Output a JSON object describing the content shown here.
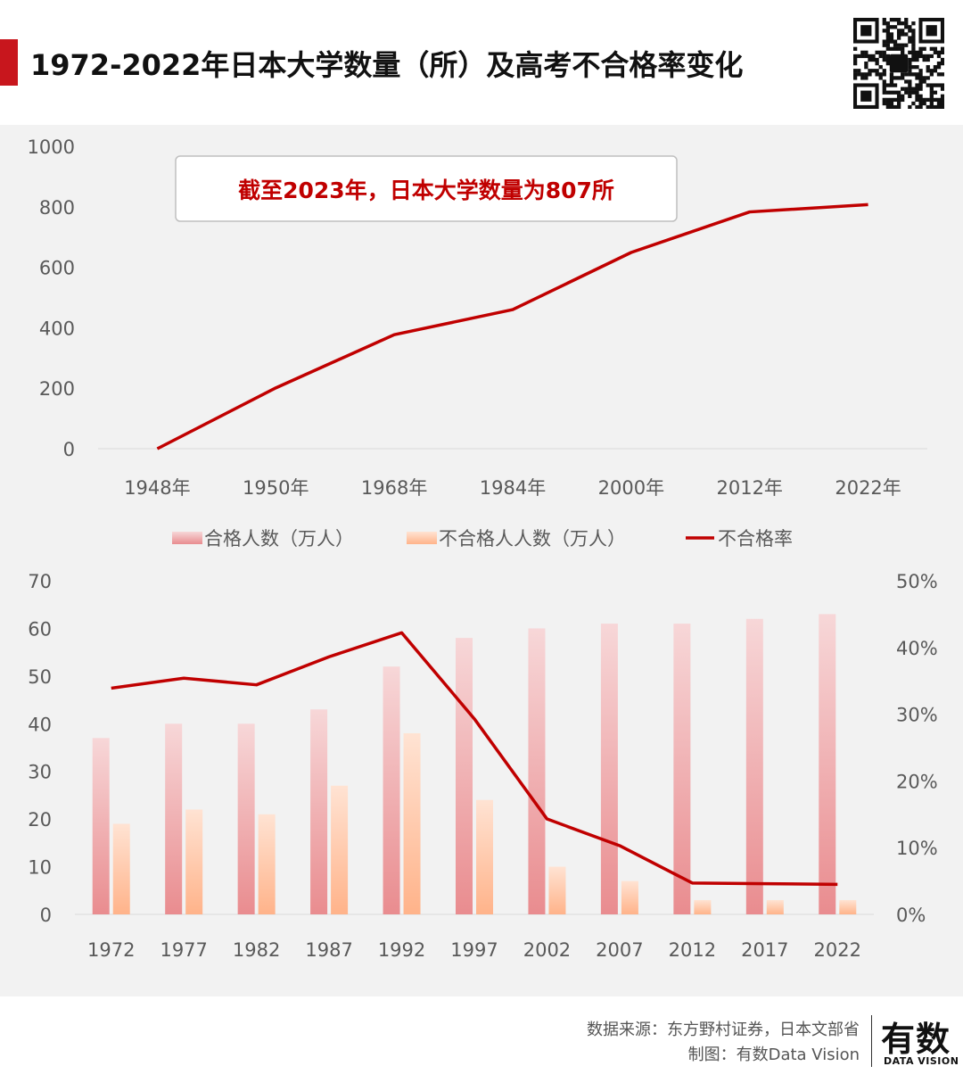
{
  "title": "1972-2022年日本大学数量（所）及高考不合格率变化",
  "chart_data": [
    {
      "type": "line",
      "title": "日本大学数量（所）",
      "annotation": "截至2023年，日本大学数量为807所",
      "categories": [
        "1948年",
        "1950年",
        "1968年",
        "1984年",
        "2000年",
        "2012年",
        "2022年"
      ],
      "series": [
        {
          "name": "日本大学数量",
          "values": [
            0,
            201,
            377,
            460,
            649,
            783,
            807
          ]
        }
      ],
      "ylim": [
        0,
        1000
      ],
      "yticks": [
        "0",
        "200",
        "400",
        "600",
        "800",
        "1000"
      ],
      "color": "#c00000"
    },
    {
      "type": "bar",
      "categories": [
        "1972",
        "1977",
        "1982",
        "1987",
        "1992",
        "1997",
        "2002",
        "2007",
        "2012",
        "2017",
        "2022"
      ],
      "series": [
        {
          "name": "合格人数（万人）",
          "axis": "left",
          "values": [
            37,
            40,
            40,
            43,
            52,
            58,
            60,
            61,
            61,
            62,
            63
          ]
        },
        {
          "name": "不合格人人数（万人）",
          "axis": "left",
          "values": [
            19,
            22,
            21,
            27,
            38,
            24,
            10,
            7,
            3,
            3,
            3
          ]
        },
        {
          "name": "不合格率",
          "axis": "right",
          "type": "line",
          "values": [
            33.9,
            35.4,
            34.4,
            38.6,
            42.2,
            29.3,
            14.3,
            10.3,
            4.7,
            4.6,
            4.5
          ]
        }
      ],
      "ylim_left": [
        0,
        70
      ],
      "ylim_right": [
        0,
        50
      ],
      "yticks_left": [
        "0",
        "10",
        "20",
        "30",
        "40",
        "50",
        "60",
        "70"
      ],
      "yticks_right": [
        "0%",
        "10%",
        "20%",
        "30%",
        "40%",
        "50%"
      ],
      "legend": [
        "合格人数（万人）",
        "不合格人人数（万人）",
        "不合格率"
      ],
      "legend_position": "top",
      "colors": {
        "pass": "#e98c8f",
        "fail": "#ffb38a",
        "rate": "#c00000"
      }
    }
  ],
  "footer": {
    "source": "数据来源：东方野村证券，日本文部省",
    "credit": "制图：有数Data Vision",
    "brand": "有数",
    "brand_sub": "DATA VISION"
  },
  "qr_icon": "qr-code-icon"
}
